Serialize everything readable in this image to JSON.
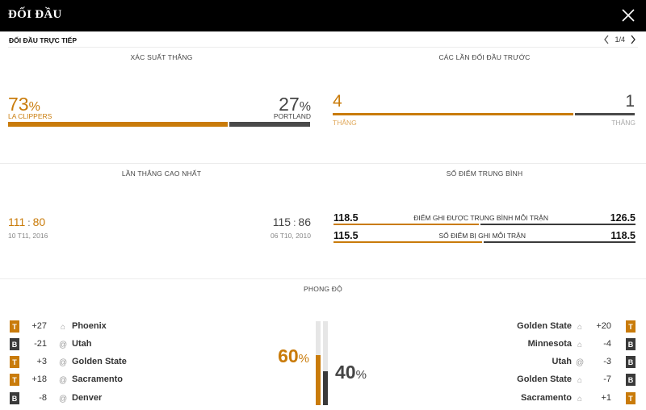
{
  "header": {
    "title": "ĐỐI ĐẦU",
    "close_icon": "close-icon"
  },
  "subheader": {
    "label": "ĐỐI ĐẦU TRỰC TIẾP",
    "pager_text": "1/4",
    "prev_icon": "chevron-left-icon",
    "next_icon": "chevron-right-icon"
  },
  "colors": {
    "accent": "#c97b0a",
    "dark": "#3a3a3a",
    "topbar": "#000000"
  },
  "win_probability": {
    "title": "XÁC SUẤT THẮNG",
    "home_pct": 73,
    "home_pct_text": "73",
    "home_team": "LA CLIPPERS",
    "away_pct": 27,
    "away_pct_text": "27",
    "away_team": "PORTLAND",
    "pct_sign": "%"
  },
  "previous_matchups": {
    "title": "CÁC LẦN ĐỐI ĐẦU TRƯỚC",
    "home_wins": 4,
    "home_wins_text": "4",
    "home_label": "THẮNG",
    "away_wins": 1,
    "away_wins_text": "1",
    "away_label": "THẮNG"
  },
  "highest_wins": {
    "title": "LẦN THẮNG CAO NHẤT",
    "home": {
      "score_a": "111",
      "score_b": "80",
      "date": "10 T11, 2016"
    },
    "away": {
      "score_a": "115",
      "score_b": "86",
      "date": "06 T10, 2010"
    },
    "separator": ":"
  },
  "average_points": {
    "title": "SỐ ĐIỂM TRUNG BÌNH",
    "rows": [
      {
        "label": "ĐIỂM GHI ĐƯỢC TRUNG BÌNH MỖI TRẬN",
        "home": "118.5",
        "away": "126.5",
        "home_share": 0.484
      },
      {
        "label": "SỐ ĐIỂM BỊ GHI MỖI TRẬN",
        "home": "115.5",
        "away": "118.5",
        "home_share": 0.494
      }
    ]
  },
  "form": {
    "title": "PHONG ĐỘ",
    "home_pct": 60,
    "home_pct_text": "60",
    "away_pct": 40,
    "away_pct_text": "40",
    "pct_sign": "%",
    "home_games": [
      {
        "result": "T",
        "diff": "+27",
        "venue": "home",
        "opponent": "Phoenix"
      },
      {
        "result": "B",
        "diff": "-21",
        "venue": "away",
        "opponent": "Utah"
      },
      {
        "result": "T",
        "diff": "+3",
        "venue": "away",
        "opponent": "Golden State"
      },
      {
        "result": "T",
        "diff": "+18",
        "venue": "away",
        "opponent": "Sacramento"
      },
      {
        "result": "B",
        "diff": "-8",
        "venue": "away",
        "opponent": "Denver"
      }
    ],
    "away_games": [
      {
        "result": "T",
        "diff": "+20",
        "venue": "home",
        "opponent": "Golden State"
      },
      {
        "result": "B",
        "diff": "-4",
        "venue": "home",
        "opponent": "Minnesota"
      },
      {
        "result": "B",
        "diff": "-3",
        "venue": "away",
        "opponent": "Utah"
      },
      {
        "result": "B",
        "diff": "-7",
        "venue": "home",
        "opponent": "Golden State"
      },
      {
        "result": "T",
        "diff": "+1",
        "venue": "home",
        "opponent": "Sacramento"
      }
    ]
  }
}
